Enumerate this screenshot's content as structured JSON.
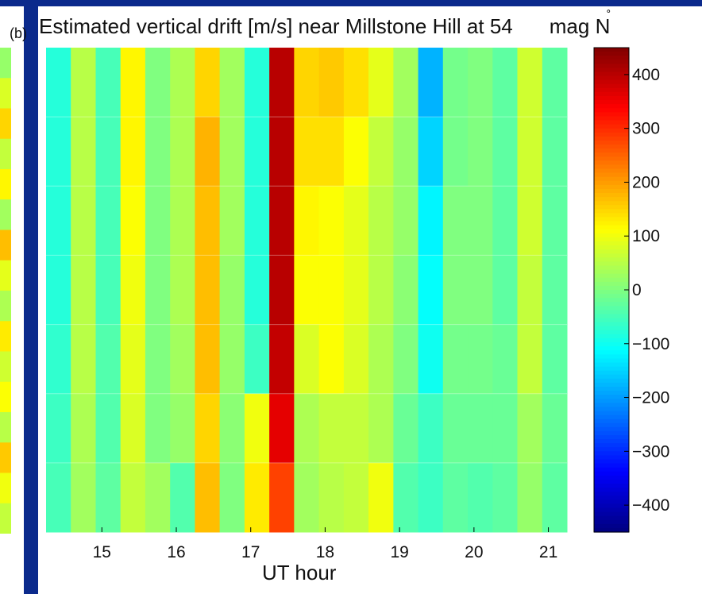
{
  "panel_label": "(b)",
  "colors": {
    "frame_blue": "#0b2a8c",
    "grid_line": "#ffffff"
  },
  "colormap": "jet",
  "chart_data": {
    "type": "heatmap",
    "title": "Estimated vertical drift [m/s] near Millstone Hill at 54˚ mag N",
    "title_main": "Estimated vertical drift [m/s] near Millstone Hill at 54",
    "title_degree": "˚",
    "title_tail": "mag N",
    "xlabel": "UT hour",
    "ylabel": "",
    "x_ticks": [
      "15",
      "16",
      "17",
      "18",
      "19",
      "20",
      "21"
    ],
    "x_tick_values": [
      15,
      16,
      17,
      18,
      19,
      20,
      21
    ],
    "x_range": [
      14.25,
      21.25
    ],
    "column_starts": [
      14.25,
      14.583,
      14.917,
      15.25,
      15.583,
      15.917,
      16.25,
      16.583,
      16.917,
      17.25,
      17.583,
      17.917,
      18.25,
      18.583,
      18.917,
      19.25,
      19.583,
      19.917,
      20.25,
      20.583,
      20.917
    ],
    "n_rows": 7,
    "colorbar": {
      "range": [
        -450,
        450
      ],
      "ticks": [
        "400",
        "300",
        "200",
        "100",
        "0",
        "−100",
        "−200",
        "−300",
        "−400"
      ],
      "tick_values": [
        400,
        300,
        200,
        100,
        0,
        -100,
        -200,
        -300,
        -400
      ]
    },
    "values": [
      [
        -80,
        50,
        -50,
        120,
        0,
        40,
        150,
        30,
        -80,
        400,
        150,
        160,
        140,
        90,
        30,
        -180,
        -10,
        0,
        -30,
        70,
        -30
      ],
      [
        -80,
        50,
        -50,
        120,
        0,
        40,
        180,
        30,
        -80,
        400,
        140,
        140,
        110,
        60,
        20,
        -150,
        -10,
        0,
        -30,
        70,
        -30
      ],
      [
        -80,
        50,
        -50,
        110,
        0,
        40,
        170,
        30,
        -80,
        400,
        120,
        110,
        90,
        50,
        20,
        -120,
        0,
        0,
        -30,
        70,
        -30
      ],
      [
        -80,
        50,
        -50,
        100,
        0,
        40,
        170,
        20,
        -80,
        400,
        110,
        110,
        90,
        50,
        10,
        -110,
        0,
        0,
        -30,
        60,
        -30
      ],
      [
        -70,
        50,
        -40,
        90,
        0,
        30,
        170,
        20,
        -60,
        390,
        80,
        110,
        80,
        40,
        0,
        -100,
        -10,
        -10,
        -20,
        60,
        -30
      ],
      [
        -60,
        40,
        -40,
        80,
        0,
        20,
        150,
        10,
        100,
        360,
        40,
        60,
        60,
        40,
        -20,
        -60,
        -20,
        -20,
        -20,
        30,
        -20
      ],
      [
        -50,
        30,
        -30,
        60,
        30,
        -40,
        170,
        0,
        130,
        280,
        30,
        50,
        60,
        100,
        -40,
        -60,
        -30,
        -40,
        -30,
        20,
        -30
      ]
    ]
  }
}
